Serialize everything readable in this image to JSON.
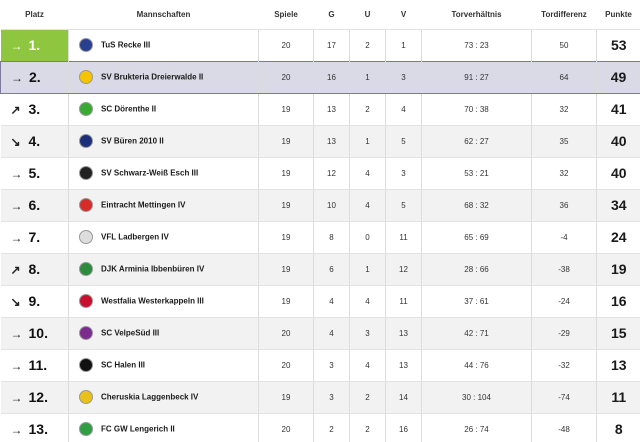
{
  "headers": {
    "platz": "Platz",
    "mannschaften": "Mannschaften",
    "spiele": "Spiele",
    "g": "G",
    "u": "U",
    "v": "V",
    "torverhaeltnis": "Torverhältnis",
    "tordifferenz": "Tordifferenz",
    "punkte": "Punkte"
  },
  "rows": [
    {
      "arrow": "→",
      "rank": "1.",
      "team": "TuS Recke III",
      "crest_color": "#2a3f8f",
      "spiele": "20",
      "g": "17",
      "u": "2",
      "v": "1",
      "tore": "73 : 23",
      "diff": "50",
      "punkte": "53"
    },
    {
      "arrow": "→",
      "rank": "2.",
      "team": "SV Brukteria Dreierwalde II",
      "crest_color": "#f5c400",
      "spiele": "20",
      "g": "16",
      "u": "1",
      "v": "3",
      "tore": "91 : 27",
      "diff": "64",
      "punkte": "49"
    },
    {
      "arrow": "↗",
      "rank": "3.",
      "team": "SC Dörenthe II",
      "crest_color": "#3aaa35",
      "spiele": "19",
      "g": "13",
      "u": "2",
      "v": "4",
      "tore": "70 : 38",
      "diff": "32",
      "punkte": "41"
    },
    {
      "arrow": "↘",
      "rank": "4.",
      "team": "SV Büren 2010 II",
      "crest_color": "#1c2f7a",
      "spiele": "19",
      "g": "13",
      "u": "1",
      "v": "5",
      "tore": "62 : 27",
      "diff": "35",
      "punkte": "40"
    },
    {
      "arrow": "→",
      "rank": "5.",
      "team": "SV Schwarz-Weiß Esch III",
      "crest_color": "#222222",
      "spiele": "19",
      "g": "12",
      "u": "4",
      "v": "3",
      "tore": "53 : 21",
      "diff": "32",
      "punkte": "40"
    },
    {
      "arrow": "→",
      "rank": "6.",
      "team": "Eintracht Mettingen IV",
      "crest_color": "#d62b2b",
      "spiele": "19",
      "g": "10",
      "u": "4",
      "v": "5",
      "tore": "68 : 32",
      "diff": "36",
      "punkte": "34"
    },
    {
      "arrow": "→",
      "rank": "7.",
      "team": "VFL Ladbergen IV",
      "crest_color": "#dddddd",
      "spiele": "19",
      "g": "8",
      "u": "0",
      "v": "11",
      "tore": "65 : 69",
      "diff": "-4",
      "punkte": "24"
    },
    {
      "arrow": "↗",
      "rank": "8.",
      "team": "DJK Arminia Ibbenbüren IV",
      "crest_color": "#2e8b3d",
      "spiele": "19",
      "g": "6",
      "u": "1",
      "v": "12",
      "tore": "28 : 66",
      "diff": "-38",
      "punkte": "19"
    },
    {
      "arrow": "↘",
      "rank": "9.",
      "team": "Westfalia Westerkappeln III",
      "crest_color": "#c8102e",
      "spiele": "19",
      "g": "4",
      "u": "4",
      "v": "11",
      "tore": "37 : 61",
      "diff": "-24",
      "punkte": "16"
    },
    {
      "arrow": "→",
      "rank": "10.",
      "team": "SC VelpeSüd III",
      "crest_color": "#7b2d8e",
      "spiele": "20",
      "g": "4",
      "u": "3",
      "v": "13",
      "tore": "42 : 71",
      "diff": "-29",
      "punkte": "15"
    },
    {
      "arrow": "→",
      "rank": "11.",
      "team": "SC Halen III",
      "crest_color": "#111111",
      "spiele": "20",
      "g": "3",
      "u": "4",
      "v": "13",
      "tore": "44 : 76",
      "diff": "-32",
      "punkte": "13"
    },
    {
      "arrow": "→",
      "rank": "12.",
      "team": "Cheruskia Laggenbeck IV",
      "crest_color": "#e8c21a",
      "spiele": "19",
      "g": "3",
      "u": "2",
      "v": "14",
      "tore": "30 : 104",
      "diff": "-74",
      "punkte": "11"
    },
    {
      "arrow": "→",
      "rank": "13.",
      "team": "FC GW Lengerich II",
      "crest_color": "#2f9e44",
      "spiele": "20",
      "g": "2",
      "u": "2",
      "v": "16",
      "tore": "26 : 74",
      "diff": "-48",
      "punkte": "8"
    }
  ]
}
